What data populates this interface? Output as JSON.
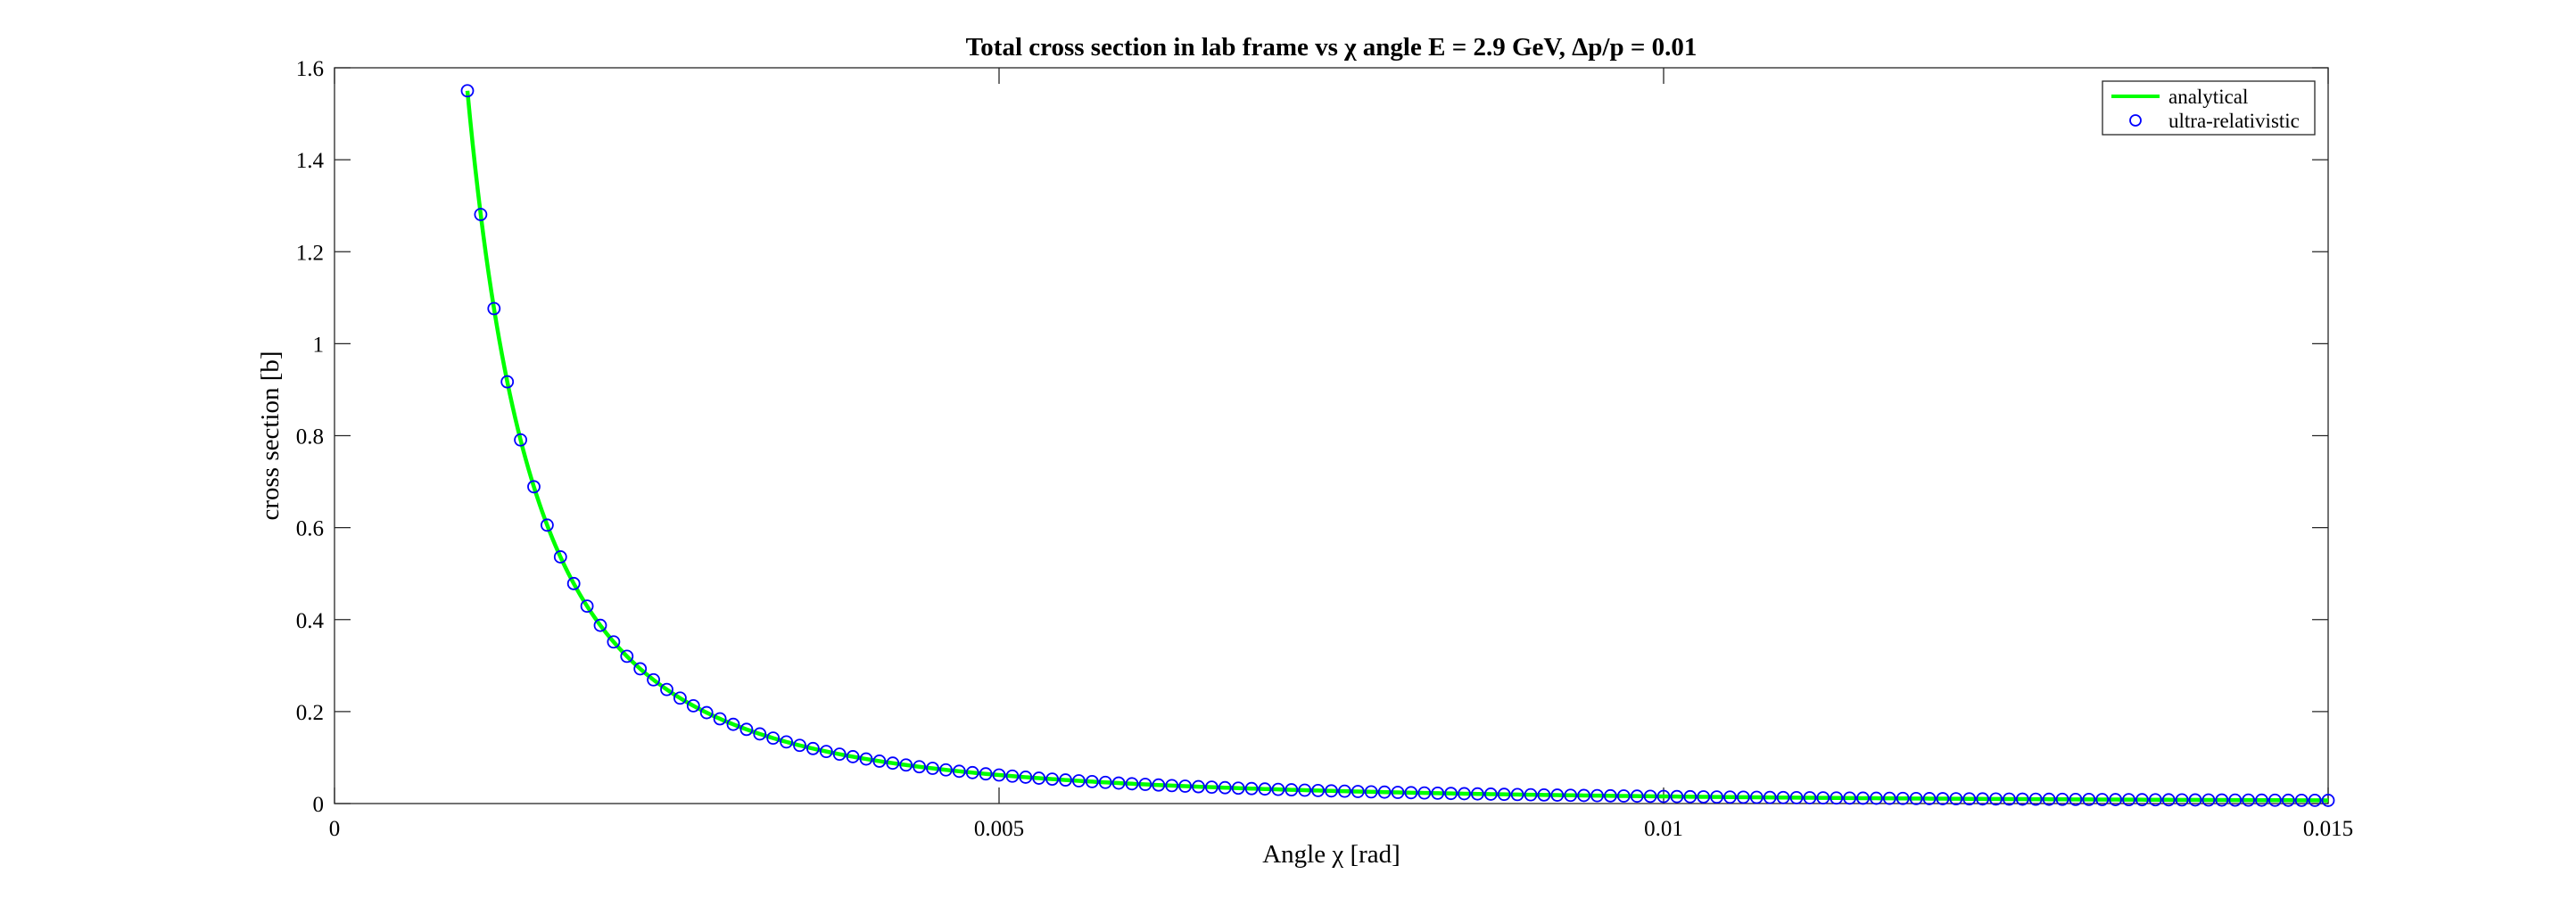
{
  "chart_data": {
    "type": "line",
    "title": "Total cross section in lab frame vs χ angle E = 2.9 GeV, Δp/p = 0.01",
    "xlabel": "Angle χ [rad]",
    "ylabel": "cross section [b]",
    "xlim": [
      0,
      0.015
    ],
    "ylim": [
      0,
      1.6
    ],
    "xticks": [
      0,
      0.005,
      0.01,
      0.015
    ],
    "xtick_labels": [
      "0",
      "0.005",
      "0.01",
      "0.015"
    ],
    "yticks": [
      0,
      0.2,
      0.4,
      0.6,
      0.8,
      1.0,
      1.2,
      1.4,
      1.6
    ],
    "ytick_labels": [
      "0",
      "0.2",
      "0.4",
      "0.6",
      "0.8",
      "1",
      "1.2",
      "1.4",
      "1.6"
    ],
    "grid": false,
    "legend_position": "top-right",
    "series": [
      {
        "name": "analytical",
        "style": "line",
        "color": "#00ff00",
        "x_start": 0.001,
        "x_end": 0.015,
        "x_step": 0.0001,
        "model": "y = 1.55e-6 / x^2"
      },
      {
        "name": "ultra-relativistic",
        "style": "circle-markers",
        "color": "#0000ff",
        "x_start": 0.001,
        "x_end": 0.015,
        "x_step": 0.0001,
        "model": "y = 1.55e-6 / x^2"
      }
    ]
  }
}
